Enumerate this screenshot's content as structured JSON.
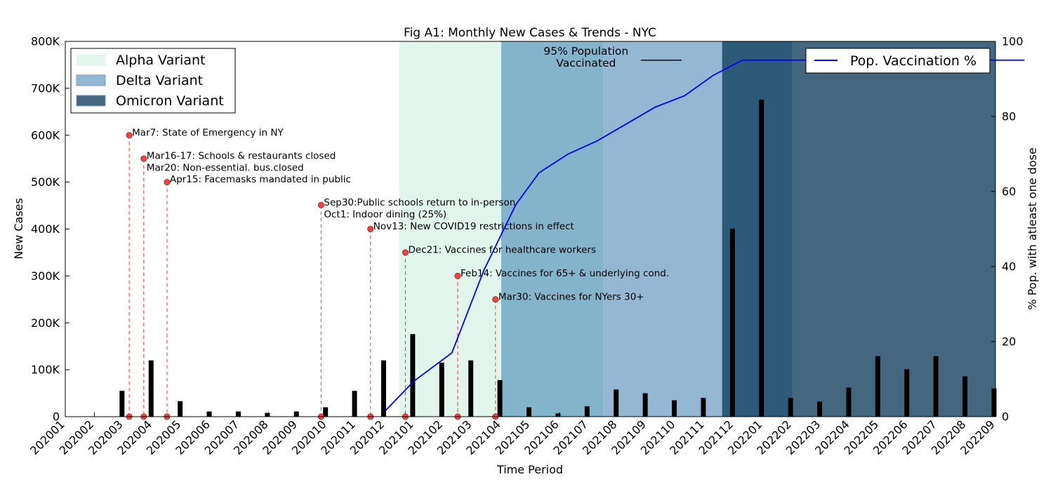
{
  "chart_data": {
    "type": "bar",
    "title": "Fig A1: Monthly New Cases & Trends - NYC",
    "xlabel": "Time Period",
    "ylabel": "New Cases",
    "y2label": "% Pop. with atleast one dose",
    "ylim": [
      0,
      800000
    ],
    "y2lim": [
      0,
      100
    ],
    "y_ticks": [
      "0",
      "100K",
      "200K",
      "300K",
      "400K",
      "500K",
      "600K",
      "700K",
      "800K"
    ],
    "y2_ticks": [
      "0",
      "20",
      "40",
      "60",
      "80",
      "100"
    ],
    "categories": [
      "202001",
      "202002",
      "202003",
      "202004",
      "202005",
      "202006",
      "202007",
      "202008",
      "202009",
      "202010",
      "202011",
      "202012",
      "202101",
      "202102",
      "202103",
      "202104",
      "202105",
      "202106",
      "202107",
      "202108",
      "202109",
      "202110",
      "202111",
      "202112",
      "202201",
      "202202",
      "202203",
      "202204",
      "202205",
      "202206",
      "202207",
      "202208",
      "202209"
    ],
    "series": [
      {
        "values": [
          0,
          0,
          55000,
          120000,
          33000,
          11000,
          11000,
          8000,
          11000,
          20000,
          55000,
          120000,
          176000,
          115000,
          120000,
          78000,
          20000,
          7000,
          22000,
          58000,
          50000,
          35000,
          40000,
          401000,
          676000,
          40000,
          32000,
          62000,
          129000,
          101000,
          129000,
          86000,
          60000
        ],
        "color": "#000000"
      },
      {
        "name": "Pop. Vaccination %",
        "color": "#0000ff",
        "axis": "right",
        "x": [
          11.0,
          12.0,
          13.3,
          14.4,
          15.5,
          16.3,
          17.3,
          18.3,
          19.3,
          20.3,
          21.3,
          22.3,
          23.3,
          24.3,
          25.3,
          26.3,
          27.3,
          28.3,
          29.3,
          30.3,
          31.3,
          32.3,
          33.0
        ],
        "values": [
          1.5,
          9.5,
          17,
          39,
          56.5,
          65,
          70,
          73.5,
          78,
          82.5,
          85.5,
          91,
          95,
          95,
          95,
          95,
          95,
          95,
          95,
          95,
          95,
          95,
          95
        ]
      }
    ],
    "variants": [
      {
        "name": "Alpha Variant",
        "start": 11.5,
        "end": 15.0,
        "color": "#e1f5ec"
      },
      {
        "name": "Delta Variant",
        "start": 15.0,
        "end": 22.6,
        "color": "#94b8d3"
      },
      {
        "name": "Omicron Variant",
        "start": 22.6,
        "end": 32.0,
        "color": "#44667f"
      }
    ],
    "variant_overlaps": [
      {
        "start": 15.0,
        "end": 18.5,
        "color": "#84b3cc"
      },
      {
        "start": 22.6,
        "end": 25.0,
        "color": "#2e5a7a"
      }
    ],
    "events": [
      {
        "x": 2.2,
        "y": 600000,
        "lines": [
          "Mar7: State of Emergency in NY"
        ]
      },
      {
        "x": 2.7,
        "y": 550000,
        "lines": [
          "Mar16-17: Schools & restaurants closed",
          "Mar20: Non-essential. bus.closed"
        ]
      },
      {
        "x": 3.5,
        "y": 500000,
        "lines": [
          "Apr15: Facemasks mandated in public"
        ]
      },
      {
        "x": 8.8,
        "y": 451000,
        "lines": [
          "Sep30:Public schools return to in-person",
          "Oct1: Indoor dining (25%)"
        ]
      },
      {
        "x": 10.5,
        "y": 400000,
        "lines": [
          "Nov13: New COVID19 restrictions in effect"
        ]
      },
      {
        "x": 11.7,
        "y": 350000,
        "lines": [
          "Dec21: Vaccines for healthcare workers"
        ]
      },
      {
        "x": 13.5,
        "y": 300000,
        "lines": [
          "Feb14: Vaccines for 65+ & underlying cond."
        ]
      },
      {
        "x": 14.8,
        "y": 250000,
        "lines": [
          "Mar30: Vaccines for NYers 30+"
        ]
      }
    ],
    "threshold_annotation": {
      "lines": [
        "95% Population",
        "Vaccinated"
      ],
      "x": 21.2,
      "y": 95
    },
    "legend_left": "top-left",
    "legend_right": "top-right",
    "grid": false
  }
}
